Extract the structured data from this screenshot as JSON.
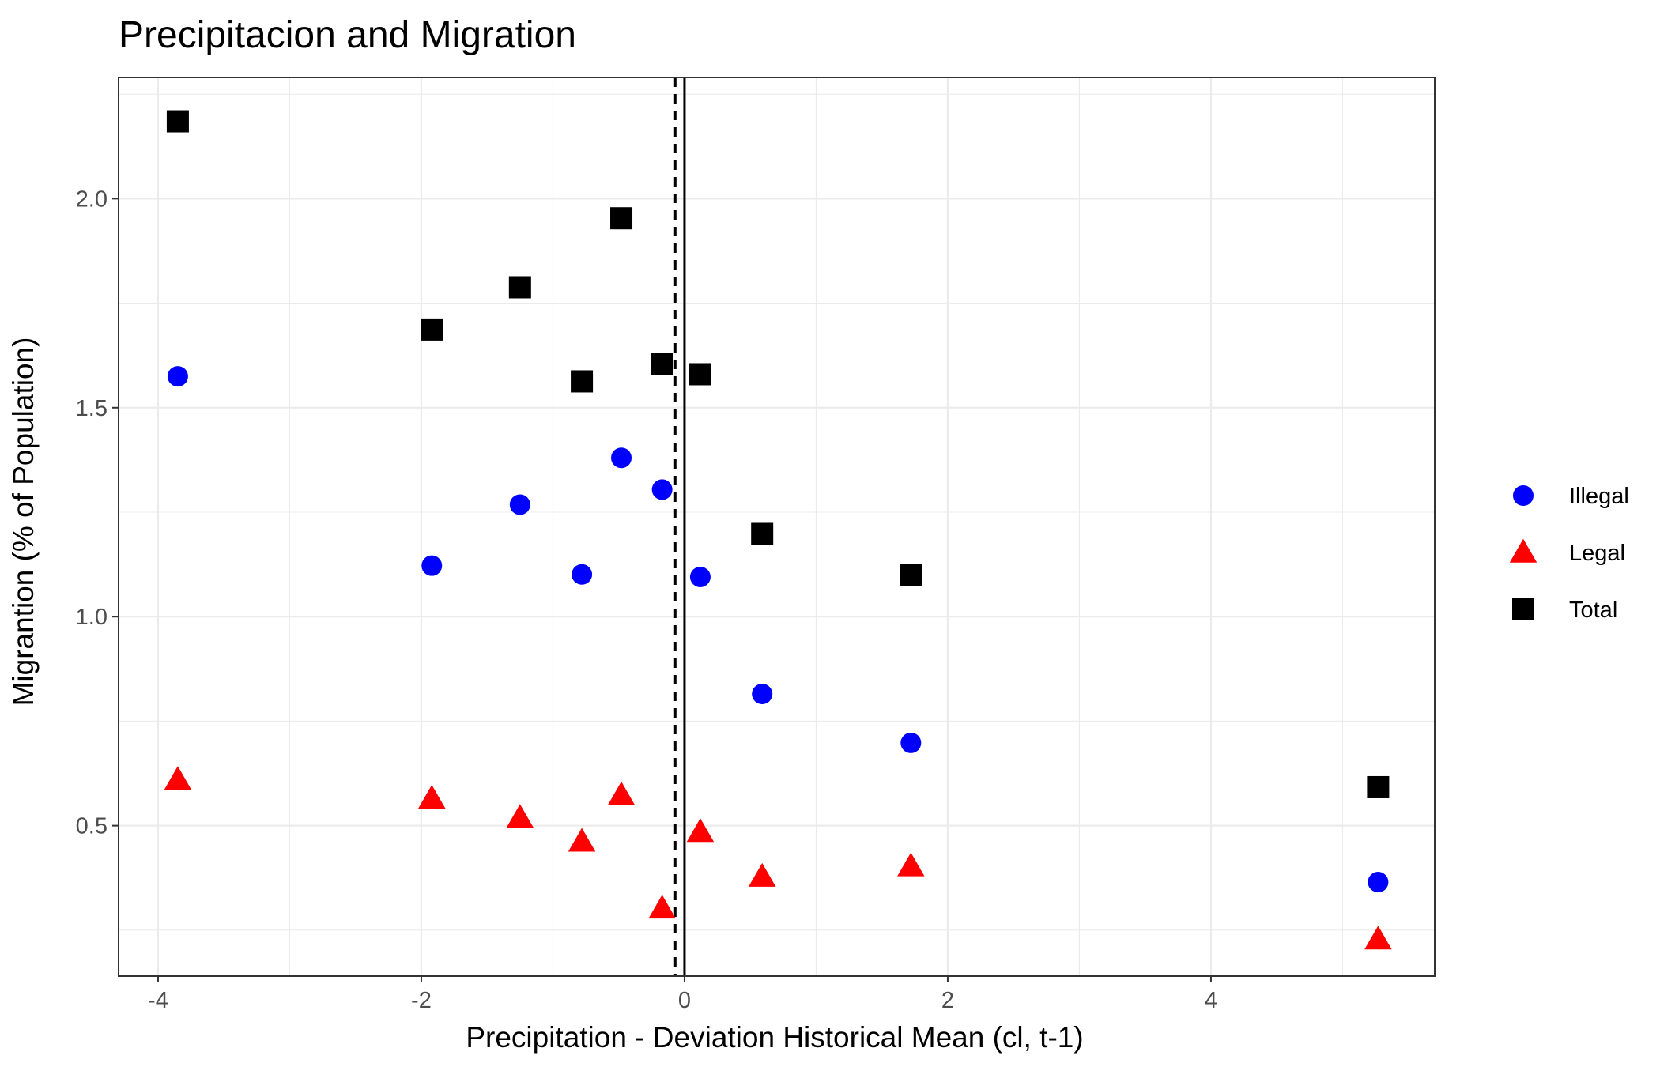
{
  "chart_data": {
    "type": "scatter",
    "title": "Precipitacion and Migration",
    "xlabel": "Precipitation - Deviation Historical Mean (cl, t-1)",
    "ylabel": "Migrantion (% of Population)",
    "xlim": [
      -4.3,
      5.7
    ],
    "ylim": [
      0.14,
      2.29
    ],
    "x_ticks": [
      -4,
      -2,
      0,
      2,
      4
    ],
    "x_tick_labels": [
      "-4",
      "-2",
      "0",
      "2",
      "4"
    ],
    "y_ticks": [
      0.5,
      1.0,
      1.5,
      2.0
    ],
    "y_tick_labels": [
      "0.5",
      "1.0",
      "1.5",
      "2.0"
    ],
    "grid": true,
    "legend_position": "right",
    "reference_lines": [
      {
        "x": -0.07,
        "style": "dashed"
      },
      {
        "x": 0,
        "style": "solid"
      }
    ],
    "series": [
      {
        "name": "Illegal",
        "marker": "circle",
        "color": "#0000ff",
        "points": [
          {
            "x": -3.85,
            "y": 1.575
          },
          {
            "x": -1.92,
            "y": 1.122
          },
          {
            "x": -1.25,
            "y": 1.268
          },
          {
            "x": -0.78,
            "y": 1.101
          },
          {
            "x": -0.48,
            "y": 1.38
          },
          {
            "x": -0.17,
            "y": 1.304
          },
          {
            "x": 0.12,
            "y": 1.095
          },
          {
            "x": 0.59,
            "y": 0.815
          },
          {
            "x": 1.72,
            "y": 0.698
          },
          {
            "x": 5.27,
            "y": 0.365
          }
        ]
      },
      {
        "name": "Legal",
        "marker": "triangle",
        "color": "#ff0000",
        "points": [
          {
            "x": -3.85,
            "y": 0.61
          },
          {
            "x": -1.92,
            "y": 0.565
          },
          {
            "x": -1.25,
            "y": 0.519
          },
          {
            "x": -0.78,
            "y": 0.462
          },
          {
            "x": -0.48,
            "y": 0.573
          },
          {
            "x": -0.17,
            "y": 0.302
          },
          {
            "x": 0.12,
            "y": 0.485
          },
          {
            "x": 0.59,
            "y": 0.378
          },
          {
            "x": 1.72,
            "y": 0.403
          },
          {
            "x": 5.27,
            "y": 0.228
          }
        ]
      },
      {
        "name": "Total",
        "marker": "square",
        "color": "#000000",
        "points": [
          {
            "x": -3.85,
            "y": 2.185
          },
          {
            "x": -1.92,
            "y": 1.687
          },
          {
            "x": -1.25,
            "y": 1.788
          },
          {
            "x": -0.78,
            "y": 1.563
          },
          {
            "x": -0.48,
            "y": 1.953
          },
          {
            "x": -0.17,
            "y": 1.605
          },
          {
            "x": 0.12,
            "y": 1.58
          },
          {
            "x": 0.59,
            "y": 1.198
          },
          {
            "x": 1.72,
            "y": 1.1
          },
          {
            "x": 5.27,
            "y": 0.592
          }
        ]
      }
    ]
  }
}
